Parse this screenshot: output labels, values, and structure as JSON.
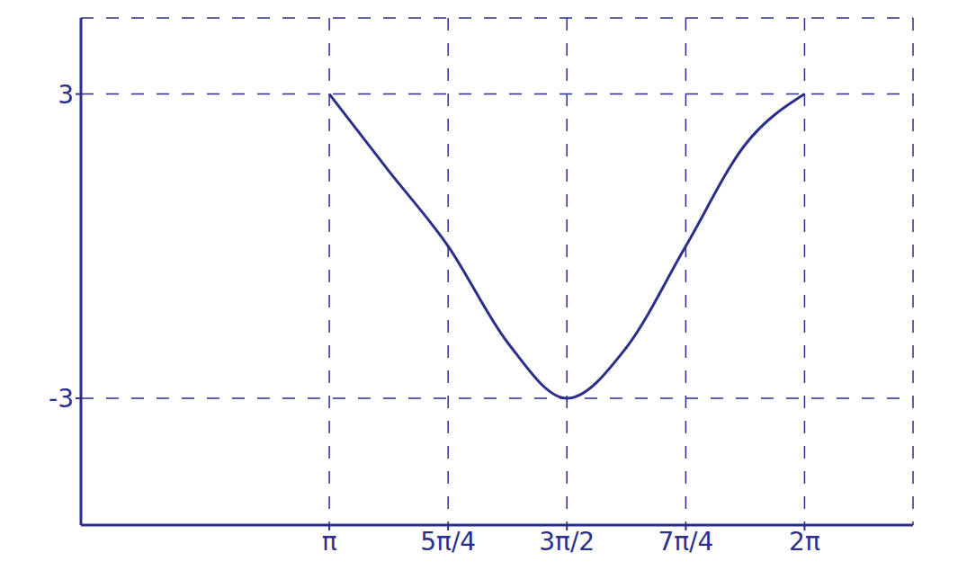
{
  "chart_data": {
    "type": "line",
    "x": [
      3.1416,
      3.53,
      3.927,
      4.32,
      4.712,
      5.105,
      5.498,
      5.89,
      6.283
    ],
    "values": [
      3,
      1.5,
      0,
      -1.9,
      -3,
      -2.0,
      0,
      2.0,
      3
    ],
    "color": "#2b2f8a",
    "xlim": [
      1.5,
      7.0
    ],
    "xticks": [
      {
        "value": 3.1416,
        "label": "π"
      },
      {
        "value": 3.927,
        "label": "5π/4"
      },
      {
        "value": 4.712,
        "label": "3π/2"
      },
      {
        "value": 5.498,
        "label": "7π/4"
      },
      {
        "value": 6.283,
        "label": "2π"
      }
    ],
    "ylim": [
      -5.5,
      4.5
    ],
    "yticks": [
      -3,
      3
    ],
    "grid": true,
    "line_style": "solid"
  }
}
